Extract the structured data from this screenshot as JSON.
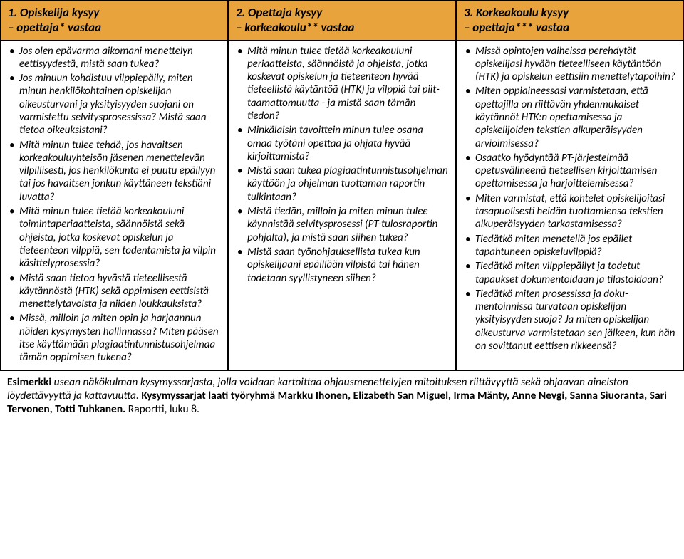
{
  "colors": {
    "header_bg": "#e8a33d",
    "border": "#000000",
    "text": "#000000",
    "background": "#ffffff"
  },
  "columns": [
    {
      "title_line1": "1. Opiskelija kysyy",
      "title_line2": "– opettaja* vastaa",
      "items": [
        "Jos olen epävarma aikomani menet­telyn eettisyydestä, mistä saan tukea?",
        "Jos minuun kohdistuu vilppiepäily, miten minun henkilökohtainen opis­kelijan oikeusturvani ja yksityisyyden suojani on varmistettu selvitysproses­sissa? Mistä saan tietoa oikeuksistani?",
        "Mitä minun tulee tehdä, jos havaitsen korkeakouluyhteisön jäsenen menet­televän vilpillisesti, jos henkilökunta ei puutu epäilyyn tai jos havaitsen jonkun käyttäneen tekstiäni luvatta?",
        "Mitä minun tulee tietää korkeakoulu­ni toimintaperiaatteista, säännöistä sekä ohjeista, jotka koskevat opiske­lun ja tieteenteon vilppiä, sen toden­tamista ja vilpin käsittelyprosessia?",
        "Mistä saan tietoa  hyvästä tieteelli­sestä käytännöstä (HTK) sekä oppi­misen eettisistä menettelytavoista ja niiden loukkauksista?",
        "Missä, milloin ja miten opin ja har­jaannun näiden kysymysten hallin­nassa? Miten pääsen itse käyttämään plagiaatintunnistusohjelmaa tämän oppimisen tukena?"
      ]
    },
    {
      "title_line1": "2. Opettaja kysyy",
      "title_line2": "– korkeakoulu** vastaa",
      "items": [
        "Mitä minun tulee tietää korkea­kouluni periaatteista, säännöistä ja ohjeista, jotka koskevat opiskelun ja tieteenteon hyvää tieteellistä käytäntöä (HTK) ja vilppiä tai piit­taamattomuutta - ja mistä saan tämän tiedon?",
        "Minkälaisin tavoittein minun tulee osana omaa työtäni opettaa ja ohjata hyvää kirjoittamista?",
        "Mistä saan tukea plagiaatintunnis­tusohjelman käyttöön ja ohjelman tuottaman raportin tulkintaan?",
        "Mistä tiedän, milloin ja miten minun tulee käynnistää selvitys­prosessi (PT-tulosraportin pohjalta), ja mistä saan siihen tukea?",
        "Mistä saan työnohjauksellista tukea kun opiskelijaani epäillään vilpistä tai hänen todetaan syyllistyneen siihen?"
      ]
    },
    {
      "title_line1": "3. Korkeakoulu kysyy",
      "title_line2": "– opettaja*** vastaa",
      "items": [
        "Missä opintojen vaiheissa pereh­dytät opiskelijasi hyvään tieteelli­seen käytäntöön (HTK) ja opiskelun eettisiin menettelytapoihin?",
        "Miten oppiaineessasi varmistetaan, että opettajilla on riittävän yhden­mukaiset käytännöt HTK:n opetta­misessa ja opiskelijoiden tekstien alkuperäisyyden arvioimisessa?",
        "Osaatko hyödyntää PT-järjestel­mää opetusvälineenä tieteellisen kirjoittamisen opettamisessa ja harjoittelemisessa?",
        "Miten varmistat, että kohtelet opiskelijoitasi tasapuolisesti heidän tuottamiensa tekstien alkuperäi­syyden tarkastamisessa?",
        "Tiedätkö miten menetellä jos epäilet tapahtuneen opiskelu­vilppiä?",
        "Tiedätkö miten vilppiepäilyt ja todetut tapaukset dokumentoidaan ja tilastoidaan?",
        "Tiedätkö miten prosessissa ja doku­mentoinnissa turvataan opiskelijan yksityisyyden suoja? Ja miten opis­kelijan oikeusturva varmistetaan sen jälkeen, kun hän on sovittanut eettisen rikkeensä?"
      ]
    }
  ],
  "footer": {
    "lead": "Esimerkki ",
    "body1": "usean näkökulman kysymyssarjasta, jolla voidaan kartoittaa ohjausmenettelyjen mitoituksen riittävyyttä sekä ohjaavan aineiston löydettävyyttä ja kattavuutta.",
    "cite": " Kysymyssarjat laati työryhmä Markku Ihonen, Elizabeth San Miguel, Irma Mänty, Anne Nevgi, Sanna Siuoranta, Sari Tervonen, Totti Tuhkanen.",
    "last": " Raportti, luku 8."
  }
}
